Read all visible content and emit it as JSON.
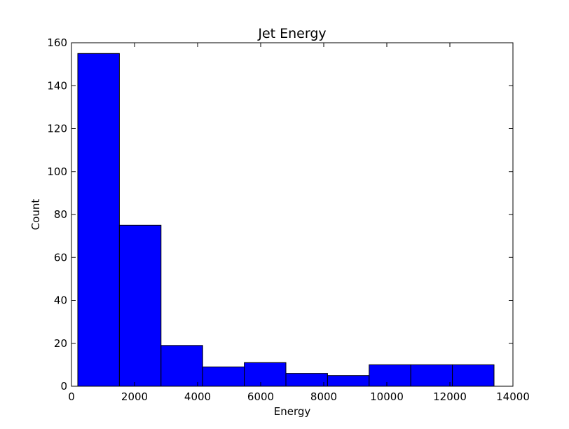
{
  "chart_data": {
    "type": "bar",
    "title": "Jet Energy",
    "xlabel": "Energy",
    "ylabel": "Count",
    "xlim": [
      0,
      14000
    ],
    "ylim": [
      0,
      160
    ],
    "xticks": [
      0,
      2000,
      4000,
      6000,
      8000,
      10000,
      12000,
      14000
    ],
    "yticks": [
      0,
      20,
      40,
      60,
      80,
      100,
      120,
      140,
      160
    ],
    "bins": [
      {
        "x0": 200,
        "x1": 1520,
        "count": 155
      },
      {
        "x0": 1520,
        "x1": 2840,
        "count": 75
      },
      {
        "x0": 2840,
        "x1": 4160,
        "count": 19
      },
      {
        "x0": 4160,
        "x1": 5480,
        "count": 9
      },
      {
        "x0": 5480,
        "x1": 6800,
        "count": 11
      },
      {
        "x0": 6800,
        "x1": 8120,
        "count": 6
      },
      {
        "x0": 8120,
        "x1": 9440,
        "count": 5
      },
      {
        "x0": 9440,
        "x1": 10760,
        "count": 10
      },
      {
        "x0": 10760,
        "x1": 12080,
        "count": 10
      },
      {
        "x0": 12080,
        "x1": 13400,
        "count": 10
      }
    ],
    "bar_color": "#0000ff",
    "grid": false,
    "legend": "none"
  }
}
